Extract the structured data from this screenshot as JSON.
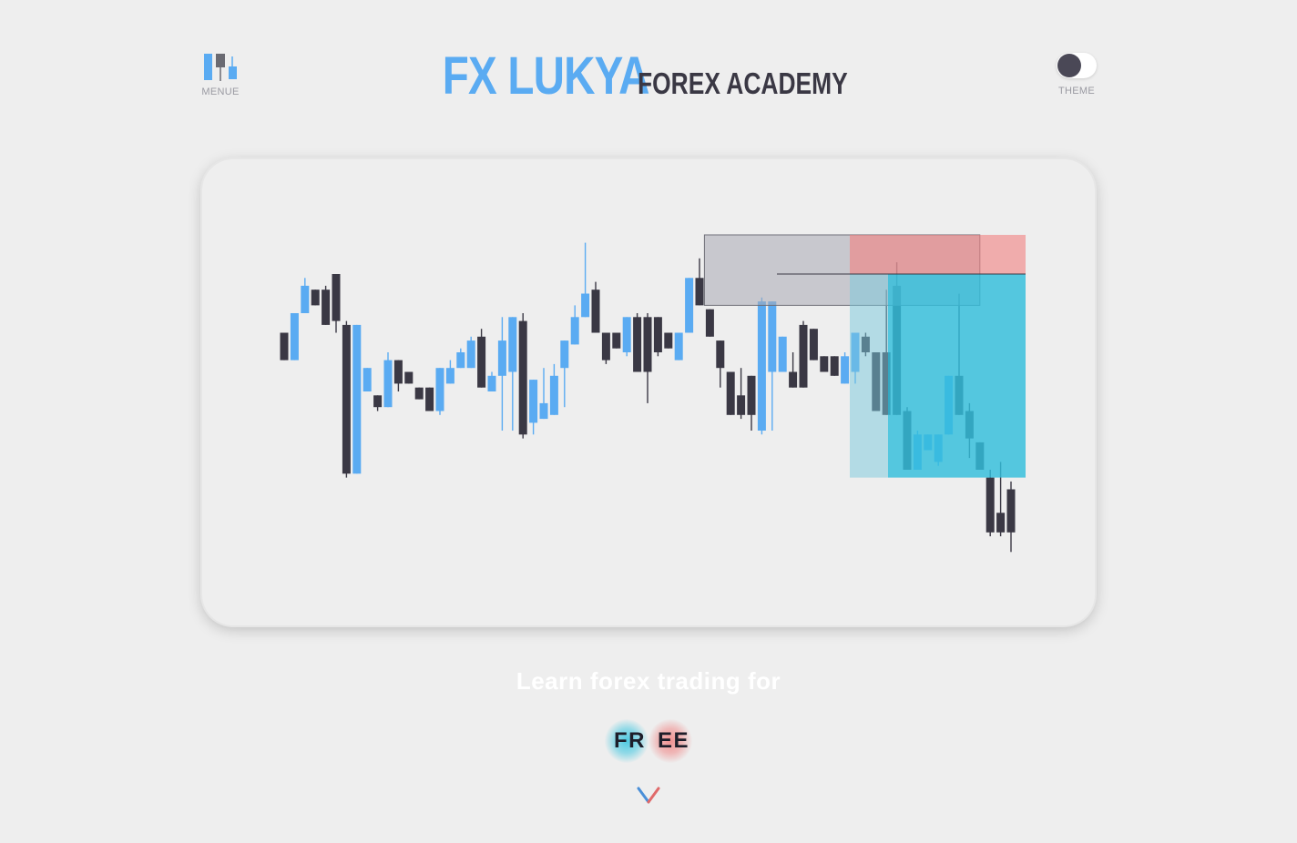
{
  "header": {
    "menu_label": "MENUE",
    "brand_main": "FX LUKYA",
    "brand_sub": "FOREX ACADEMY",
    "theme_label": "THEME"
  },
  "hero": {
    "tagline": "Learn forex trading for",
    "free_left": "FR",
    "free_right": "EE"
  },
  "colors": {
    "accent_blue": "#5aabf2",
    "dark": "#3a3844",
    "background": "#eeeeee",
    "tp_zone": "#3cc4e0",
    "sl_zone": "#f09090"
  },
  "icons": {
    "menu": "candlestick-menu-icon",
    "theme": "toggle-switch-icon",
    "scroll": "chevron-down-icon"
  },
  "chart_data": {
    "type": "candlestick",
    "note_units": "price",
    "ylim": [
      0,
      100
    ],
    "candles": [
      {
        "o": 58,
        "c": 65,
        "h": 65,
        "l": 58,
        "bull": false
      },
      {
        "o": 58,
        "c": 70,
        "h": 70,
        "l": 58,
        "bull": true
      },
      {
        "o": 70,
        "c": 77,
        "h": 79,
        "l": 70,
        "bull": true
      },
      {
        "o": 76,
        "c": 72,
        "h": 76,
        "l": 72,
        "bull": false
      },
      {
        "o": 76,
        "c": 67,
        "h": 77,
        "l": 67,
        "bull": false
      },
      {
        "o": 80,
        "c": 68,
        "h": 80,
        "l": 65,
        "bull": false
      },
      {
        "o": 67,
        "c": 29,
        "h": 68,
        "l": 28,
        "bull": false
      },
      {
        "o": 29,
        "c": 67,
        "h": 67,
        "l": 29,
        "bull": true
      },
      {
        "o": 50,
        "c": 56,
        "h": 56,
        "l": 50,
        "bull": true
      },
      {
        "o": 49,
        "c": 46,
        "h": 49,
        "l": 45,
        "bull": false
      },
      {
        "o": 46,
        "c": 58,
        "h": 60,
        "l": 46,
        "bull": true
      },
      {
        "o": 58,
        "c": 52,
        "h": 58,
        "l": 50,
        "bull": false
      },
      {
        "o": 55,
        "c": 52,
        "h": 55,
        "l": 52,
        "bull": false
      },
      {
        "o": 51,
        "c": 48,
        "h": 51,
        "l": 48,
        "bull": false
      },
      {
        "o": 51,
        "c": 45,
        "h": 51,
        "l": 45,
        "bull": false
      },
      {
        "o": 45,
        "c": 56,
        "h": 56,
        "l": 44,
        "bull": true
      },
      {
        "o": 52,
        "c": 56,
        "h": 58,
        "l": 52,
        "bull": true
      },
      {
        "o": 56,
        "c": 60,
        "h": 61,
        "l": 56,
        "bull": true
      },
      {
        "o": 56,
        "c": 63,
        "h": 64,
        "l": 56,
        "bull": true
      },
      {
        "o": 64,
        "c": 51,
        "h": 66,
        "l": 51,
        "bull": false
      },
      {
        "o": 50,
        "c": 54,
        "h": 55,
        "l": 50,
        "bull": true
      },
      {
        "o": 54,
        "c": 63,
        "h": 69,
        "l": 40,
        "bull": true
      },
      {
        "o": 55,
        "c": 69,
        "h": 69,
        "l": 40,
        "bull": true
      },
      {
        "o": 68,
        "c": 39,
        "h": 70,
        "l": 38,
        "bull": false
      },
      {
        "o": 42,
        "c": 53,
        "h": 53,
        "l": 39,
        "bull": true
      },
      {
        "o": 47,
        "c": 43,
        "h": 56,
        "l": 43,
        "bull": true
      },
      {
        "o": 44,
        "c": 54,
        "h": 57,
        "l": 44,
        "bull": true
      },
      {
        "o": 56,
        "c": 63,
        "h": 63,
        "l": 46,
        "bull": true
      },
      {
        "o": 62,
        "c": 69,
        "h": 72,
        "l": 62,
        "bull": true
      },
      {
        "o": 69,
        "c": 75,
        "h": 88,
        "l": 69,
        "bull": true
      },
      {
        "o": 76,
        "c": 65,
        "h": 78,
        "l": 65,
        "bull": false
      },
      {
        "o": 65,
        "c": 58,
        "h": 65,
        "l": 57,
        "bull": false
      },
      {
        "o": 65,
        "c": 61,
        "h": 65,
        "l": 61,
        "bull": false
      },
      {
        "o": 60,
        "c": 69,
        "h": 69,
        "l": 59,
        "bull": true
      },
      {
        "o": 69,
        "c": 55,
        "h": 70,
        "l": 55,
        "bull": false
      },
      {
        "o": 69,
        "c": 55,
        "h": 70,
        "l": 47,
        "bull": false
      },
      {
        "o": 69,
        "c": 60,
        "h": 69,
        "l": 59,
        "bull": false
      },
      {
        "o": 61,
        "c": 65,
        "h": 65,
        "l": 61,
        "bull": false
      },
      {
        "o": 58,
        "c": 65,
        "h": 65,
        "l": 58,
        "bull": true
      },
      {
        "o": 65,
        "c": 79,
        "h": 79,
        "l": 65,
        "bull": true
      },
      {
        "o": 79,
        "c": 72,
        "h": 84,
        "l": 72,
        "bull": false
      },
      {
        "o": 71,
        "c": 64,
        "h": 71,
        "l": 64,
        "bull": false
      },
      {
        "o": 63,
        "c": 56,
        "h": 63,
        "l": 51,
        "bull": false
      },
      {
        "o": 55,
        "c": 44,
        "h": 55,
        "l": 44,
        "bull": false
      },
      {
        "o": 49,
        "c": 44,
        "h": 56,
        "l": 43,
        "bull": false
      },
      {
        "o": 54,
        "c": 44,
        "h": 54,
        "l": 40,
        "bull": false
      },
      {
        "o": 40,
        "c": 73,
        "h": 74,
        "l": 39,
        "bull": true
      },
      {
        "o": 55,
        "c": 73,
        "h": 73,
        "l": 40,
        "bull": true
      },
      {
        "o": 55,
        "c": 64,
        "h": 64,
        "l": 55,
        "bull": true
      },
      {
        "o": 55,
        "c": 51,
        "h": 60,
        "l": 51,
        "bull": false
      },
      {
        "o": 67,
        "c": 51,
        "h": 68,
        "l": 51,
        "bull": false
      },
      {
        "o": 66,
        "c": 58,
        "h": 66,
        "l": 58,
        "bull": false
      },
      {
        "o": 59,
        "c": 55,
        "h": 59,
        "l": 55,
        "bull": false
      },
      {
        "o": 59,
        "c": 54,
        "h": 59,
        "l": 54,
        "bull": false
      },
      {
        "o": 52,
        "c": 59,
        "h": 60,
        "l": 52,
        "bull": true
      },
      {
        "o": 55,
        "c": 65,
        "h": 65,
        "l": 52,
        "bull": true
      },
      {
        "o": 64,
        "c": 60,
        "h": 65,
        "l": 59,
        "bull": false
      },
      {
        "o": 60,
        "c": 45,
        "h": 60,
        "l": 45,
        "bull": false
      },
      {
        "o": 60,
        "c": 44,
        "h": 76,
        "l": 44,
        "bull": false
      },
      {
        "o": 77,
        "c": 44,
        "h": 83,
        "l": 44,
        "bull": false
      },
      {
        "o": 45,
        "c": 30,
        "h": 46,
        "l": 30,
        "bull": false
      },
      {
        "o": 30,
        "c": 39,
        "h": 40,
        "l": 30,
        "bull": true
      },
      {
        "o": 35,
        "c": 39,
        "h": 39,
        "l": 35,
        "bull": true
      },
      {
        "o": 32,
        "c": 39,
        "h": 39,
        "l": 31,
        "bull": true
      },
      {
        "o": 54,
        "c": 39,
        "h": 54,
        "l": 39,
        "bull": true
      },
      {
        "o": 54,
        "c": 44,
        "h": 75,
        "l": 44,
        "bull": false
      },
      {
        "o": 45,
        "c": 38,
        "h": 47,
        "l": 33,
        "bull": false
      },
      {
        "o": 37,
        "c": 30,
        "h": 37,
        "l": 30,
        "bull": false
      },
      {
        "o": 28,
        "c": 14,
        "h": 30,
        "l": 13,
        "bull": false
      },
      {
        "o": 19,
        "c": 14,
        "h": 32,
        "l": 13,
        "bull": false
      },
      {
        "o": 25,
        "c": 14,
        "h": 27,
        "l": 9,
        "bull": false
      }
    ],
    "annotations": {
      "entry_price": 80,
      "take_profit": 28,
      "stop_loss": 90,
      "gray_zone": {
        "top": 90,
        "bottom": 72,
        "from_index": 41,
        "to_index": 67
      },
      "position_from_index": 55,
      "position_to_index": 70
    }
  }
}
